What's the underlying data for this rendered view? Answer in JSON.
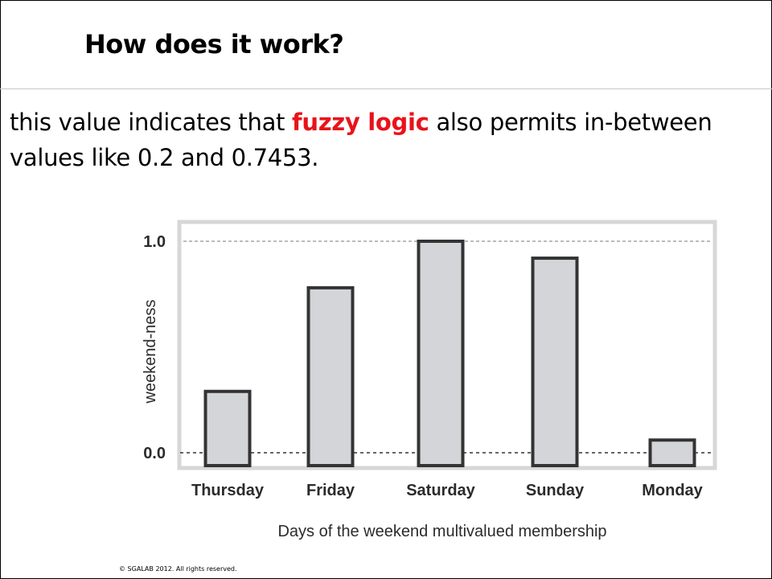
{
  "slide": {
    "title": "How does it work?",
    "body_before": "this value indicates that ",
    "body_highlight": "fuzzy logic",
    "body_after": " also permits in-between values like 0.2 and 0.7453.",
    "highlight_color": "#e8131a",
    "footer": "© SGALAB 2012. All rights reserved."
  },
  "chart_data": {
    "type": "bar",
    "categories": [
      "Thursday",
      "Friday",
      "Saturday",
      "Sunday",
      "Monday"
    ],
    "values": [
      0.29,
      0.78,
      1.0,
      0.92,
      0.06
    ],
    "xlabel": "Days of the weekend multivalued membership",
    "ylabel": "weekend-ness",
    "ylim": [
      0,
      1
    ],
    "yticks": [
      0.0,
      1.0
    ],
    "ytick_labels": [
      "0.0",
      "1.0"
    ],
    "reference_lines": [
      0.0,
      1.0
    ],
    "bar_fill": "#d4d5d8",
    "bar_stroke": "#333333",
    "frame_color": "#d7d7d7",
    "grid": false,
    "legend": "none"
  }
}
